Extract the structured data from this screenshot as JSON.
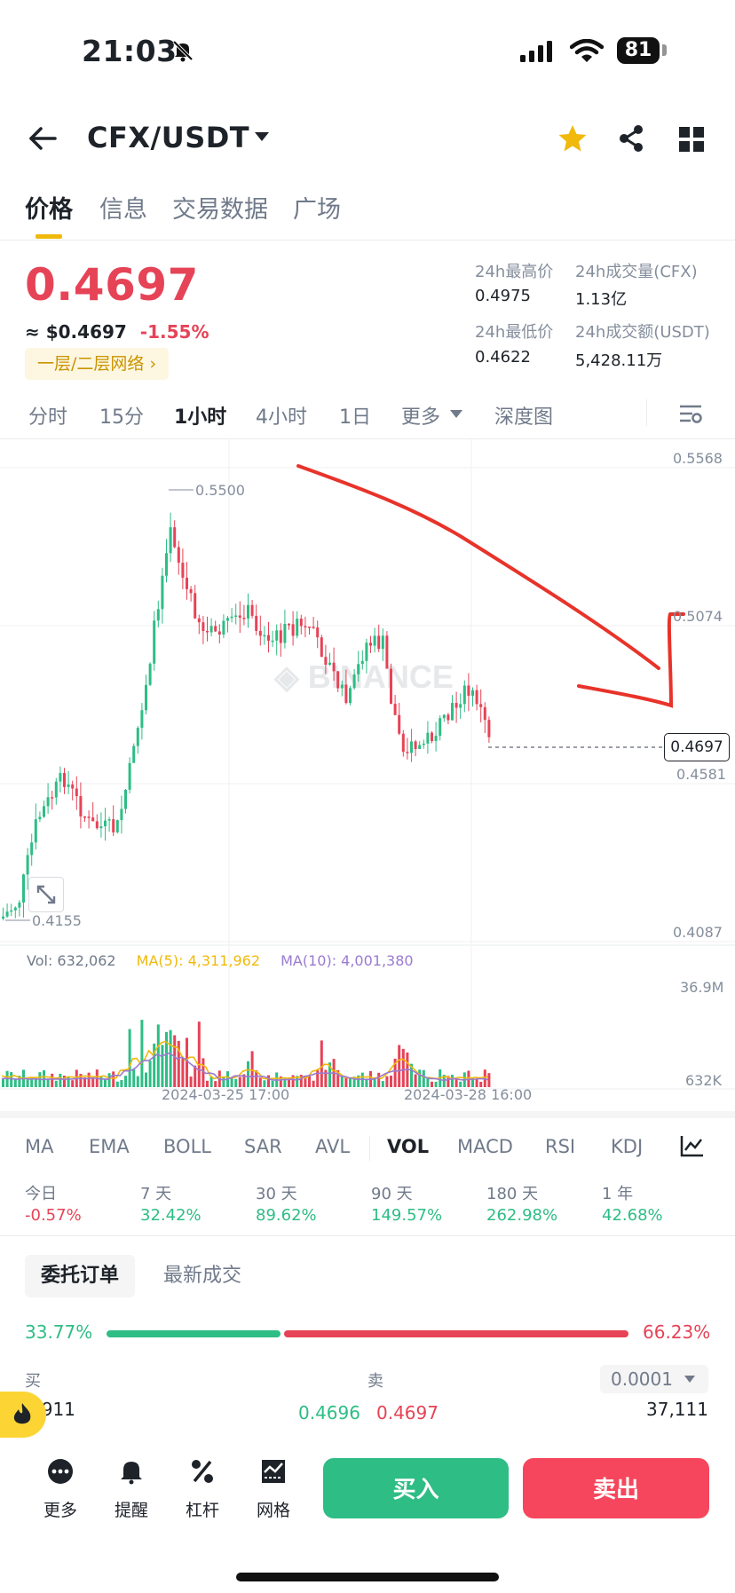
{
  "status_bar": {
    "time": "21:03",
    "battery": "81"
  },
  "header": {
    "pair": "CFX/USDT"
  },
  "tabs": [
    "价格",
    "信息",
    "交易数据",
    "广场"
  ],
  "price": {
    "last": "0.4697",
    "usd": "≈ $0.4697",
    "change": "-1.55%",
    "network": "一层/二层网络 ›"
  },
  "stats": {
    "high_label": "24h最高价",
    "high": "0.4975",
    "vol_cfx_label": "24h成交量(CFX)",
    "vol_cfx": "1.13亿",
    "low_label": "24h最低价",
    "low": "0.4622",
    "vol_usdt_label": "24h成交额(USDT)",
    "vol_usdt": "5,428.11万"
  },
  "timeframes": [
    "分时",
    "15分",
    "1小时",
    "4小时",
    "1日",
    "更多",
    "深度图"
  ],
  "chart": {
    "axis": [
      "0.5568",
      "0.5074",
      "0.4581",
      "0.4087"
    ],
    "current_price": "0.4697",
    "max_label": "0.5500",
    "min_label": "0.4155",
    "watermark": "BINANCE",
    "volume": {
      "vol": "Vol: 632,062",
      "ma5": "MA(5): 4,311,962",
      "ma10": "MA(10): 4,001,380",
      "axis_top": "36.9M",
      "axis_bottom": "632K"
    },
    "x_labels": [
      "2024-03-25 17:00",
      "2024-03-28 16:00"
    ]
  },
  "indicators": [
    "MA",
    "EMA",
    "BOLL",
    "SAR",
    "AVL",
    "VOL",
    "MACD",
    "RSI",
    "KDJ"
  ],
  "performance": [
    {
      "label": "今日",
      "value": "-0.57%",
      "color": "#e64357"
    },
    {
      "label": "7 天",
      "value": "32.42%",
      "color": "#2ebd85"
    },
    {
      "label": "30 天",
      "value": "89.62%",
      "color": "#2ebd85"
    },
    {
      "label": "90 天",
      "value": "149.57%",
      "color": "#2ebd85"
    },
    {
      "label": "180 天",
      "value": "262.98%",
      "color": "#2ebd85"
    },
    {
      "label": "1 年",
      "value": "42.68%",
      "color": "#2ebd85"
    }
  ],
  "orderbook": {
    "tab_active": "委托订单",
    "tab_other": "最新成交",
    "buy_ratio": "33.77%",
    "sell_ratio": "66.23%",
    "buy_label": "买",
    "sell_label": "卖",
    "precision": "0.0001",
    "bid_qty": "1911",
    "bid_price": "0.4696",
    "ask_price": "0.4697",
    "ask_qty": "37,111"
  },
  "bottom_nav": {
    "more": "更多",
    "alert": "提醒",
    "leverage": "杠杆",
    "grid": "网格",
    "buy": "买入",
    "sell": "卖出"
  },
  "colors": {
    "up": "#2ebd85",
    "down": "#e64357",
    "accent": "#f0b90b"
  }
}
